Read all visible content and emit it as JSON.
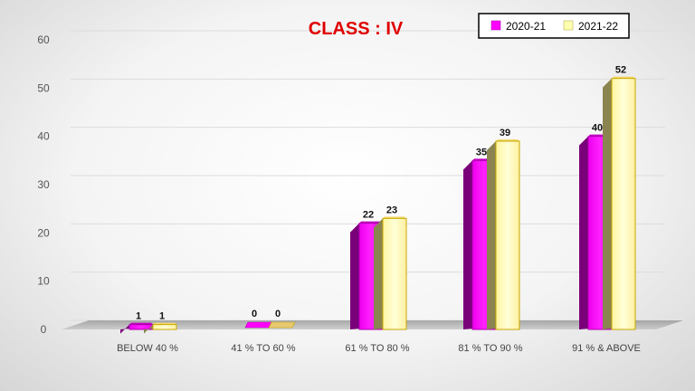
{
  "chart_data": {
    "type": "bar",
    "title": "CLASS : IV",
    "categories": [
      "BELOW 40 %",
      "41 % TO 60 %",
      "61 % TO 80 %",
      "81 % TO 90 %",
      "91 % & ABOVE"
    ],
    "series": [
      {
        "name": "2020-21",
        "values": [
          1,
          0,
          22,
          35,
          40
        ],
        "color": "#ff00ff"
      },
      {
        "name": "2021-22",
        "values": [
          1,
          0,
          23,
          39,
          52
        ],
        "color": "#ffffb0"
      }
    ],
    "yticks": [
      0,
      10,
      20,
      30,
      40,
      50,
      60
    ],
    "ylim": [
      0,
      60
    ],
    "grid": true,
    "legend_position": "top-right",
    "style": "3d-column"
  }
}
